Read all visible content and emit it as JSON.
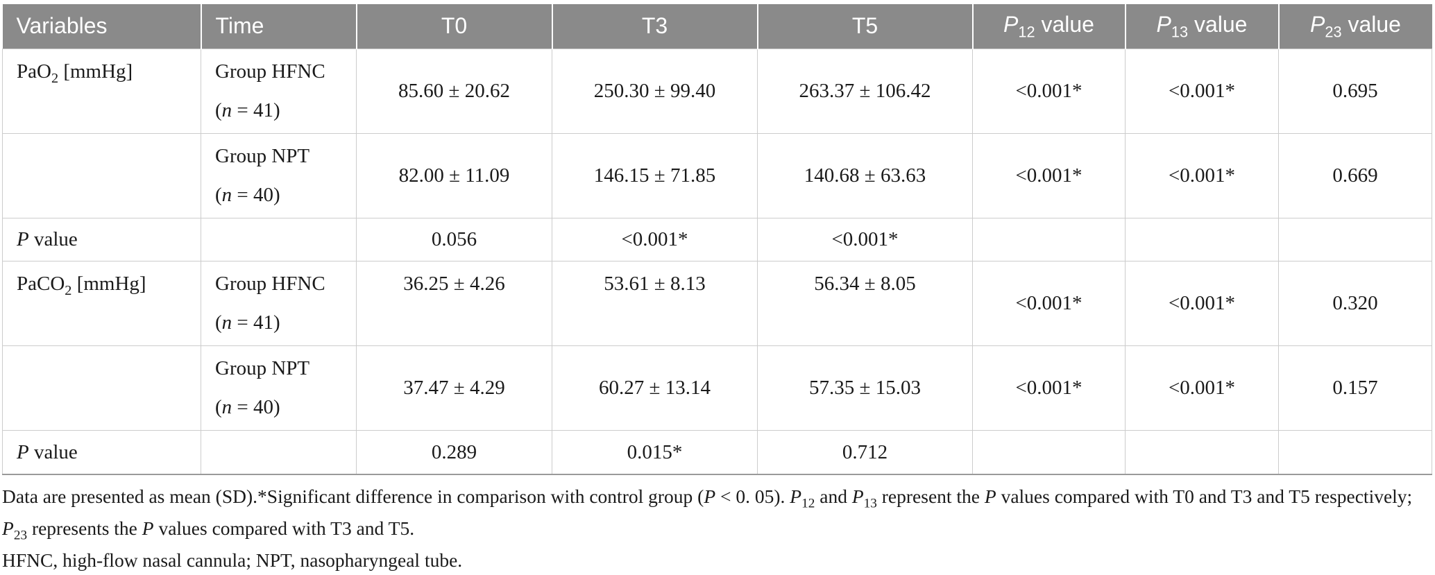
{
  "colors": {
    "header_bg": "#8a8a8a",
    "header_text": "#ffffff",
    "border": "#cccccc",
    "bottom_rule": "#9a9a9a",
    "body_text": "#1a1a1a"
  },
  "header": {
    "variables": "Variables",
    "time": "Time",
    "t0": "T0",
    "t3": "T3",
    "t5": "T5",
    "p12": [
      {
        "t": "P",
        "i": true
      },
      {
        "t": "12",
        "sub": true
      },
      {
        "t": " value"
      }
    ],
    "p13": [
      {
        "t": "P",
        "i": true
      },
      {
        "t": "13",
        "sub": true
      },
      {
        "t": " value"
      }
    ],
    "p23": [
      {
        "t": "P",
        "i": true
      },
      {
        "t": "23",
        "sub": true
      },
      {
        "t": " value"
      }
    ]
  },
  "rows": [
    {
      "variable": [
        {
          "t": "PaO"
        },
        {
          "t": "2",
          "sub": true
        },
        {
          "t": " [mmHg]"
        }
      ],
      "time_line1": "Group HFNC",
      "time_line2": [
        {
          "t": "("
        },
        {
          "t": "n",
          "i": true
        },
        {
          "t": " = 41)"
        }
      ],
      "t0": "85.60 ± 20.62",
      "t3": "250.30 ± 99.40",
      "t5": "263.37 ± 106.42",
      "p12": "<0.001*",
      "p13": "<0.001*",
      "p23": "0.695"
    },
    {
      "variable": [],
      "time_line1": "Group NPT",
      "time_line2": [
        {
          "t": "("
        },
        {
          "t": "n",
          "i": true
        },
        {
          "t": " = 40)"
        }
      ],
      "t0": "82.00 ± 11.09",
      "t3": "146.15 ± 71.85",
      "t5": "140.68 ± 63.63",
      "p12": "<0.001*",
      "p13": "<0.001*",
      "p23": "0.669"
    },
    {
      "variable": [
        {
          "t": "P",
          "i": true
        },
        {
          "t": " value"
        }
      ],
      "time_line1": "",
      "time_line2": [],
      "t0": "0.056",
      "t3": "<0.001*",
      "t5": "<0.001*",
      "p12": "",
      "p13": "",
      "p23": ""
    },
    {
      "variable": [
        {
          "t": "PaCO"
        },
        {
          "t": "2",
          "sub": true
        },
        {
          "t": " [mmHg]"
        }
      ],
      "time_line1": "Group HFNC",
      "time_line2": [
        {
          "t": "("
        },
        {
          "t": "n",
          "i": true
        },
        {
          "t": " = 41)"
        }
      ],
      "t0": "36.25 ± 4.26",
      "t3": "53.61 ± 8.13",
      "t5": "56.34 ± 8.05",
      "p12": "<0.001*",
      "p13": "<0.001*",
      "p23": "0.320"
    },
    {
      "variable": [],
      "time_line1": "Group NPT",
      "time_line2": [
        {
          "t": "("
        },
        {
          "t": "n",
          "i": true
        },
        {
          "t": " = 40)"
        }
      ],
      "t0": "37.47 ± 4.29",
      "t3": "60.27 ± 13.14",
      "t5": "57.35 ± 15.03",
      "p12": "<0.001*",
      "p13": "<0.001*",
      "p23": "0.157"
    },
    {
      "variable": [
        {
          "t": "P",
          "i": true
        },
        {
          "t": " value"
        }
      ],
      "time_line1": "",
      "time_line2": [],
      "t0": "0.289",
      "t3": "0.015*",
      "t5": "0.712",
      "p12": "",
      "p13": "",
      "p23": ""
    }
  ],
  "footnotes": {
    "line1": [
      {
        "t": "Data are presented as mean (SD).*Significant difference in comparison with control group ("
      },
      {
        "t": "P",
        "i": true
      },
      {
        "t": " < 0. 05). "
      },
      {
        "t": "P",
        "i": true
      },
      {
        "t": "12",
        "sub": true
      },
      {
        "t": " and "
      },
      {
        "t": "P",
        "i": true
      },
      {
        "t": "13",
        "sub": true
      },
      {
        "t": " represent the "
      },
      {
        "t": "P",
        "i": true
      },
      {
        "t": " values compared with T0 and T3 and T5 respectively; "
      },
      {
        "t": "P",
        "i": true
      },
      {
        "t": "23",
        "sub": true
      },
      {
        "t": " represents the "
      },
      {
        "t": "P",
        "i": true
      },
      {
        "t": " values compared with T3 and T5."
      }
    ],
    "line2": "HFNC, high-flow nasal cannula; NPT, nasopharyngeal tube."
  }
}
